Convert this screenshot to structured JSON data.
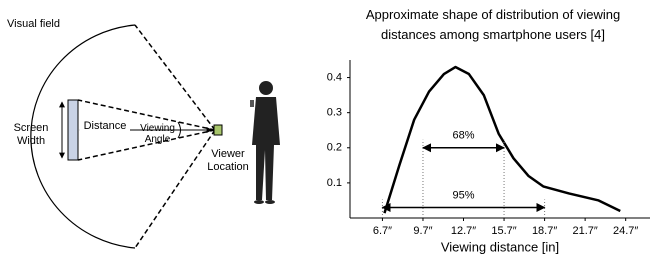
{
  "diagram": {
    "visual_field": "Visual field",
    "screen_width": "Screen Width",
    "distance": "Distance",
    "viewing_angle": "Viewing Angle",
    "viewer_location": "Viewer Location"
  },
  "chart_data": {
    "type": "line",
    "title": "Approximate shape of distribution of viewing distances among smartphone users [4]",
    "x_label": "Viewing distance [in]",
    "x": [
      6.85,
      7.95,
      9.05,
      10.15,
      11.25,
      12.1,
      13.1,
      14.2,
      15.3,
      16.4,
      17.5,
      18.6,
      20.5,
      22.7,
      24.3
    ],
    "values": [
      0.014,
      0.15,
      0.28,
      0.36,
      0.41,
      0.43,
      0.41,
      0.35,
      0.24,
      0.17,
      0.12,
      0.09,
      0.07,
      0.05,
      0.02
    ],
    "color": "#000000",
    "xlim": [
      4.3,
      26.5
    ],
    "ylim": [
      0,
      0.45
    ],
    "xticks": [
      {
        "value": 6.7,
        "label": "6.7″"
      },
      {
        "value": 9.7,
        "label": "9.7″"
      },
      {
        "value": 12.7,
        "label": "12.7″"
      },
      {
        "value": 15.7,
        "label": "15.7″"
      },
      {
        "value": 18.7,
        "label": "18.7″"
      },
      {
        "value": 21.7,
        "label": "21.7″"
      },
      {
        "value": 24.7,
        "label": "24.7″"
      }
    ],
    "yticks": [
      0.1,
      0.2,
      0.3,
      0.4
    ],
    "annotations": [
      {
        "text": "68%",
        "x": [
          9.7,
          15.7
        ],
        "y": 0.2
      },
      {
        "text": "95%",
        "x": [
          6.7,
          18.7
        ],
        "y": 0.03
      }
    ]
  }
}
